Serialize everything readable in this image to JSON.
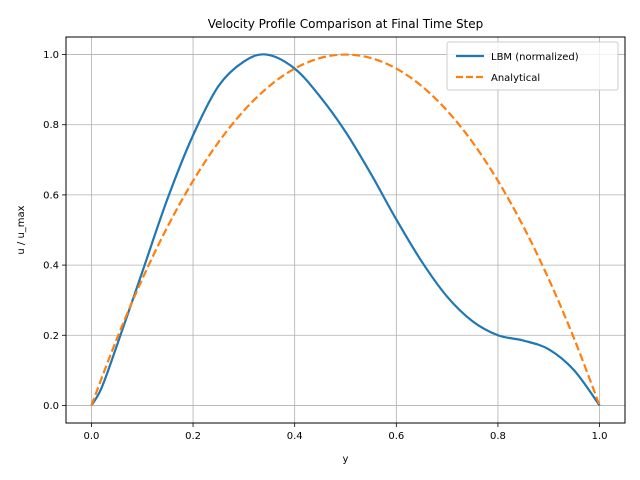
{
  "chart_data": {
    "type": "line",
    "title": "Velocity Profile Comparison at Final Time Step",
    "xlabel": "y",
    "ylabel": "u / u_max",
    "xlim": [
      -0.05,
      1.05
    ],
    "ylim": [
      -0.05,
      1.05
    ],
    "xticks": [
      0.0,
      0.2,
      0.4,
      0.6,
      0.8,
      1.0
    ],
    "xtick_labels": [
      "0.0",
      "0.2",
      "0.4",
      "0.6",
      "0.8",
      "1.0"
    ],
    "yticks": [
      0.0,
      0.2,
      0.4,
      0.6,
      0.8,
      1.0
    ],
    "ytick_labels": [
      "0.0",
      "0.2",
      "0.4",
      "0.6",
      "0.8",
      "1.0"
    ],
    "grid": true,
    "legend_position": "top-right",
    "series": [
      {
        "name": "LBM (normalized)",
        "color": "#1f77b4",
        "style": "solid",
        "x": [
          0.0,
          0.02,
          0.05,
          0.1,
          0.15,
          0.2,
          0.25,
          0.3,
          0.345,
          0.4,
          0.45,
          0.5,
          0.55,
          0.6,
          0.65,
          0.7,
          0.75,
          0.8,
          0.85,
          0.9,
          0.95,
          1.0
        ],
        "y": [
          0.0,
          0.05,
          0.17,
          0.38,
          0.59,
          0.77,
          0.91,
          0.98,
          1.0,
          0.96,
          0.88,
          0.78,
          0.66,
          0.53,
          0.41,
          0.31,
          0.24,
          0.2,
          0.185,
          0.16,
          0.1,
          0.0
        ]
      },
      {
        "name": "Analytical",
        "color": "#ff7f0e",
        "style": "dashed",
        "x": [
          0.0,
          0.05,
          0.1,
          0.15,
          0.2,
          0.25,
          0.3,
          0.35,
          0.4,
          0.45,
          0.5,
          0.55,
          0.6,
          0.65,
          0.7,
          0.75,
          0.8,
          0.85,
          0.9,
          0.95,
          1.0
        ],
        "y": [
          0.0,
          0.19,
          0.36,
          0.51,
          0.64,
          0.75,
          0.84,
          0.91,
          0.96,
          0.99,
          1.0,
          0.99,
          0.96,
          0.91,
          0.84,
          0.75,
          0.64,
          0.51,
          0.36,
          0.19,
          0.0
        ]
      }
    ]
  }
}
